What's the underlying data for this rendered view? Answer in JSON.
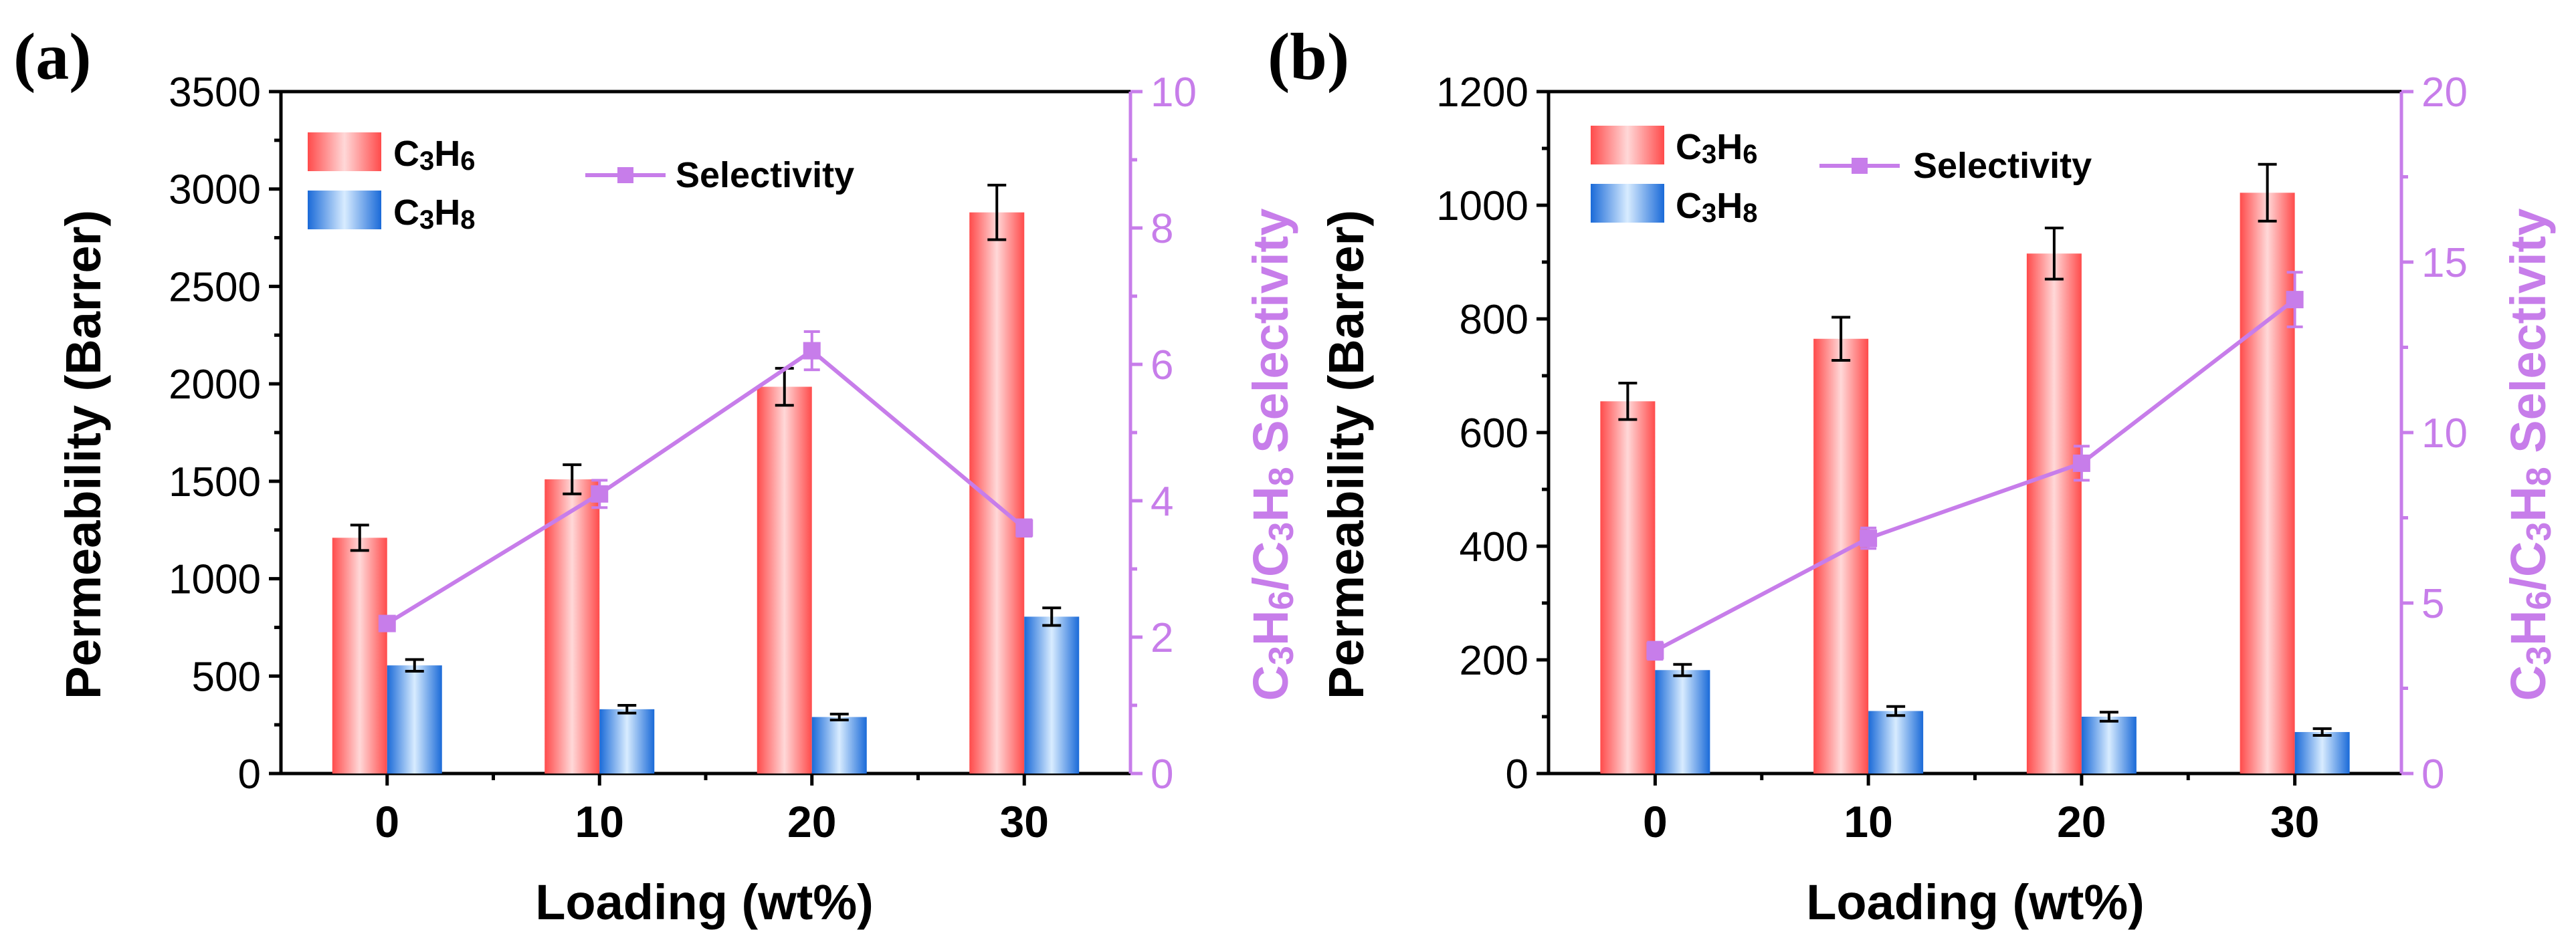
{
  "chart_data": [
    {
      "type": "bar",
      "panel_label": "(a)",
      "categories": [
        "0",
        "10",
        "20",
        "30"
      ],
      "xlabel": "Loading (wt%)",
      "ylabel": "Permeability (Barrer)",
      "ylim": [
        0,
        3500
      ],
      "yticks": [
        "0",
        "500",
        "1000",
        "1500",
        "2000",
        "2500",
        "3000",
        "3500"
      ],
      "y2label": "C3H6/C3H8 Selectivity",
      "y2lim": [
        0,
        10
      ],
      "y2ticks": [
        "0",
        "2",
        "4",
        "6",
        "8",
        "10"
      ],
      "series": [
        {
          "name": "C3H6",
          "kind": "bar",
          "values": [
            1210,
            1510,
            1985,
            2880
          ],
          "errors": [
            65,
            75,
            95,
            140
          ]
        },
        {
          "name": "C3H8",
          "kind": "bar",
          "values": [
            555,
            330,
            290,
            805
          ],
          "errors": [
            30,
            20,
            15,
            45
          ]
        },
        {
          "name": "Selectivity",
          "kind": "line",
          "axis": "right",
          "values": [
            2.2,
            4.1,
            6.2,
            3.6
          ],
          "errors": [
            0.08,
            0.2,
            0.28,
            0.12
          ]
        }
      ]
    },
    {
      "type": "bar",
      "panel_label": "(b)",
      "categories": [
        "0",
        "10",
        "20",
        "30"
      ],
      "xlabel": "Loading (wt%)",
      "ylabel": "Permeability (Barrer)",
      "ylim": [
        0,
        1200
      ],
      "yticks": [
        "0",
        "200",
        "400",
        "600",
        "800",
        "1000",
        "1200"
      ],
      "y2label": "C3H6/C3H8 Selectivity",
      "y2lim": [
        0,
        20
      ],
      "y2ticks": [
        "0",
        "5",
        "10",
        "15",
        "20"
      ],
      "series": [
        {
          "name": "C3H6",
          "kind": "bar",
          "values": [
            655,
            765,
            915,
            1022
          ],
          "errors": [
            32,
            38,
            45,
            50
          ]
        },
        {
          "name": "C3H8",
          "kind": "bar",
          "values": [
            182,
            110,
            100,
            73
          ],
          "errors": [
            10,
            8,
            8,
            6
          ]
        },
        {
          "name": "Selectivity",
          "kind": "line",
          "axis": "right",
          "values": [
            3.6,
            6.9,
            9.1,
            13.9
          ],
          "errors": [
            0.25,
            0.3,
            0.5,
            0.8
          ]
        }
      ]
    }
  ],
  "legend": {
    "c3h6": {
      "C": "C",
      "n1": "3",
      "H": "H",
      "n2": "6"
    },
    "c3h8": {
      "C": "C",
      "n1": "3",
      "H": "H",
      "n2": "8"
    },
    "selectivity": "Selectivity"
  },
  "colors": {
    "c3h6_edge": "#ff4d4d",
    "c3h6_center": "#ffd6d6",
    "c3h8_edge": "#1e6fd9",
    "c3h8_center": "#d6ebff",
    "selectivity": "#c77dea"
  }
}
